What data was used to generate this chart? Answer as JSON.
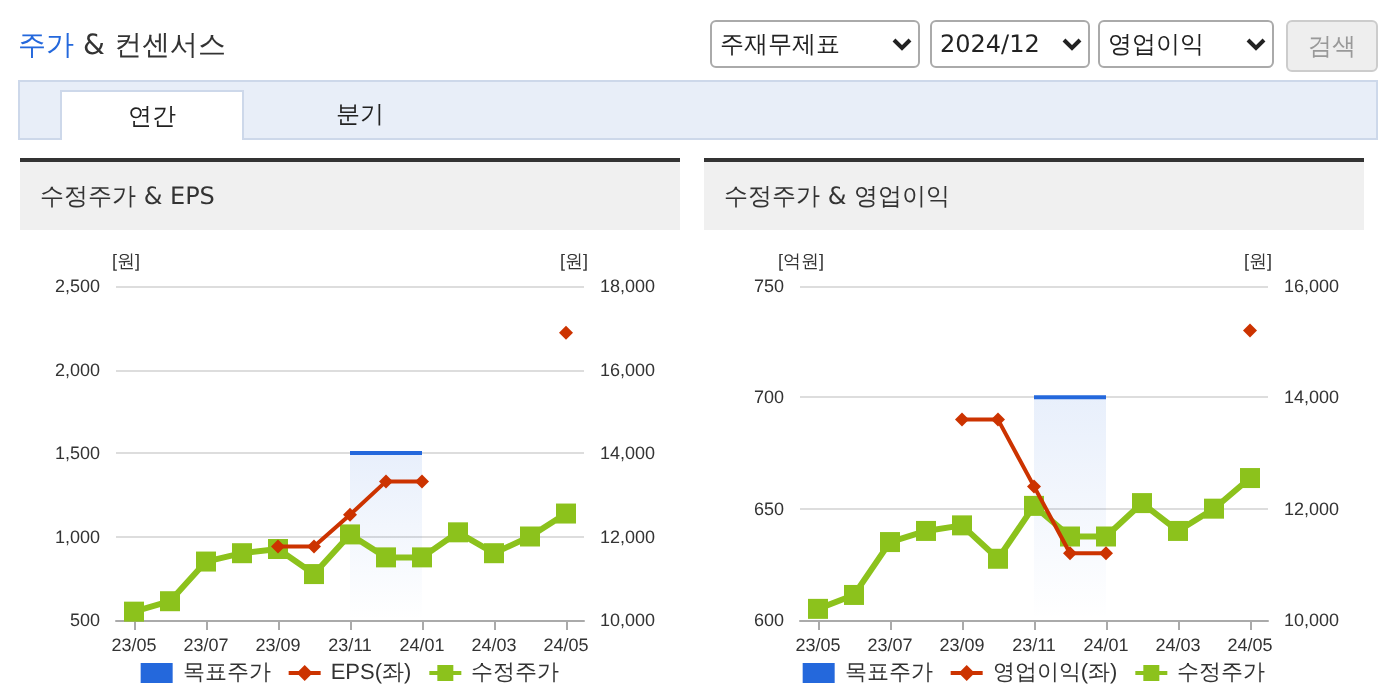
{
  "chart_data": [
    {
      "type": "other",
      "title": "주가 & 컨센서스",
      "annotations": [
        "주재무제표",
        "2024/12",
        "영업이익",
        "검색",
        "연간",
        "분기"
      ]
    },
    {
      "type": "line",
      "title": "수정주가 & EPS",
      "ylabel": "[원]",
      "y2label": "[원]",
      "categories": [
        "23/05",
        null,
        "23/07",
        null,
        "23/09",
        null,
        "23/11",
        null,
        "24/01",
        null,
        "24/03",
        null,
        "24/05"
      ],
      "series": [
        {
          "name": "목표주가",
          "type": "area",
          "axis": "y2",
          "color": "#2468dc",
          "marker": "none",
          "values": [
            null,
            null,
            null,
            null,
            null,
            null,
            14000,
            14000,
            14000,
            null,
            null,
            null,
            null
          ]
        },
        {
          "name": "EPS(좌)",
          "type": "line",
          "color": "#cc3300",
          "marker": "diamond",
          "values": [
            null,
            null,
            null,
            null,
            940,
            940,
            1130,
            1330,
            1330,
            null,
            null,
            null,
            2220
          ]
        },
        {
          "name": "수정주가",
          "type": "line",
          "axis": "y2",
          "color": "#8cc21c",
          "marker": "square",
          "values": [
            10200,
            10450,
            11400,
            11600,
            11700,
            11100,
            12050,
            11500,
            11500,
            12100,
            11600,
            12000,
            12550
          ]
        }
      ],
      "ylim": [
        500,
        2500
      ],
      "yticks": [
        500,
        {
          "value": 1000,
          "label": "1,000"
        },
        {
          "value": 1500,
          "label": "1,500"
        },
        {
          "value": 2000,
          "label": "2,000"
        },
        {
          "value": 2500,
          "label": "2,500"
        }
      ],
      "y2lim": [
        10000,
        18000
      ],
      "y2ticks": [
        {
          "value": 10000,
          "label": "10,000"
        },
        {
          "value": 12000,
          "label": "12,000"
        },
        {
          "value": 14000,
          "label": "14,000"
        },
        {
          "value": 16000,
          "label": "16,000"
        },
        {
          "value": 18000,
          "label": "18,000"
        }
      ],
      "grid": "y",
      "legend": "bottom"
    },
    {
      "type": "line",
      "title": "수정주가 & 영업이익",
      "ylabel": "[억원]",
      "y2label": "[원]",
      "categories": [
        "23/05",
        null,
        "23/07",
        null,
        "23/09",
        null,
        "23/11",
        null,
        "24/01",
        null,
        "24/03",
        null,
        "24/05"
      ],
      "series": [
        {
          "name": "목표주가",
          "type": "area",
          "axis": "y2",
          "color": "#2468dc",
          "marker": "none",
          "values": [
            null,
            null,
            null,
            null,
            null,
            null,
            14000,
            14000,
            14000,
            null,
            null,
            null,
            null
          ]
        },
        {
          "name": "영업이익(좌)",
          "type": "line",
          "color": "#cc3300",
          "marker": "diamond",
          "values": [
            null,
            null,
            null,
            null,
            690,
            690,
            660,
            630,
            630,
            null,
            null,
            null,
            730
          ]
        },
        {
          "name": "수정주가",
          "type": "line",
          "axis": "y2",
          "color": "#8cc21c",
          "marker": "square",
          "values": [
            10200,
            10450,
            11400,
            11600,
            11700,
            11100,
            12050,
            11500,
            11500,
            12100,
            11600,
            12000,
            12550
          ]
        }
      ],
      "ylim": [
        600,
        750
      ],
      "yticks": [
        600,
        650,
        700,
        750
      ],
      "y2lim": [
        10000,
        16000
      ],
      "y2ticks": [
        {
          "value": 10000,
          "label": "10,000"
        },
        {
          "value": 12000,
          "label": "12,000"
        },
        {
          "value": 14000,
          "label": "14,000"
        },
        {
          "value": 16000,
          "label": "16,000"
        }
      ],
      "grid": "y",
      "legend": "bottom"
    }
  ]
}
